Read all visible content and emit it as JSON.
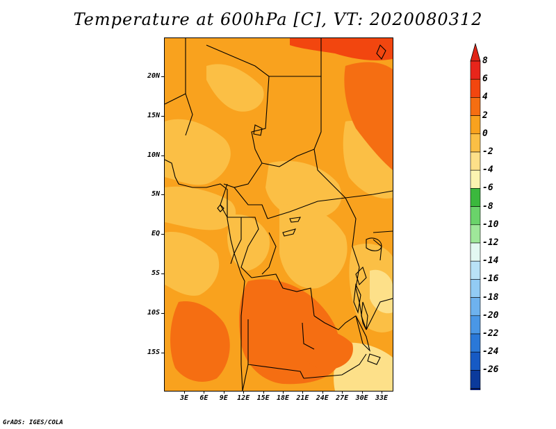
{
  "title": "Temperature at 600hPa [C], VT: 2020080312",
  "footer": "GrADS: IGES/COLA",
  "map": {
    "lat_labels": [
      "20N",
      "15N",
      "10N",
      "5N",
      "EQ",
      "5S",
      "10S",
      "15S"
    ],
    "lon_labels": [
      "3E",
      "6E",
      "9E",
      "12E",
      "15E",
      "18E",
      "21E",
      "24E",
      "27E",
      "30E",
      "33E"
    ]
  },
  "colorbar": {
    "labels": [
      "8",
      "6",
      "4",
      "2",
      "0",
      "-2",
      "-4",
      "-6",
      "-8",
      "-10",
      "-12",
      "-14",
      "-16",
      "-18",
      "-20",
      "-22",
      "-24",
      "-26"
    ],
    "colors": [
      "#e8251b",
      "#f2460f",
      "#f56e12",
      "#f9a21e",
      "#fbbf45",
      "#fde089",
      "#fcf4b1",
      "#3bb83d",
      "#6ad36a",
      "#9fe79a",
      "#e3f8f2",
      "#b9e2f7",
      "#92cbf4",
      "#6eb2ee",
      "#4a97e6",
      "#2a78d8",
      "#175ac4",
      "#0b3a9c",
      "#0a1f72"
    ],
    "top_arrow_color": "#e02416",
    "bottom_arrow_color": "#ddd6f6"
  }
}
